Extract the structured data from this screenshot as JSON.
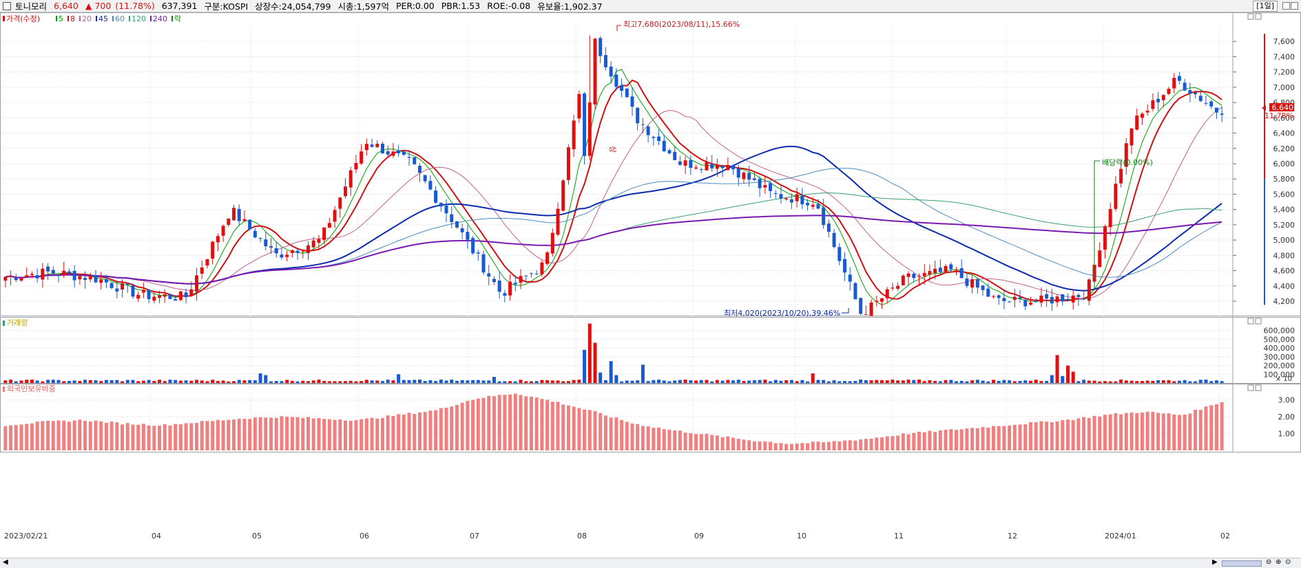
{
  "header": {
    "name": "토니모리",
    "price": "6,640",
    "change_arrow": "▲",
    "change": "700",
    "change_pct": "(11.78%)",
    "volume": "637,391",
    "market": "구분:KOSPI",
    "shares": "상장수:24,054,799",
    "cap": "시총:1,597억",
    "per": "PER:0.00",
    "pbr": "PBR:1.53",
    "roe": "ROE:-0.08",
    "float": "유보율:1,902.37",
    "period": "[1일]"
  },
  "legend": [
    {
      "label": "가격(수정)",
      "color": "#d01010"
    },
    {
      "label": "5",
      "color": "#00a000"
    },
    {
      "label": "8",
      "color": "#d01010"
    },
    {
      "label": "20",
      "color": "#c06090"
    },
    {
      "label": "45",
      "color": "#0a2ab0"
    },
    {
      "label": "60",
      "color": "#4a8ac0"
    },
    {
      "label": "120",
      "color": "#3aa070"
    },
    {
      "label": "240",
      "color": "#7a1ab0"
    },
    {
      "label": "락",
      "color": "#108010"
    }
  ],
  "annotations": {
    "high": "최고7,680(2023/08/11),15.66%",
    "low": "최저4,020(2023/10/20),39.46%",
    "limit_up": "상",
    "dividend": "배당락(0.00%)"
  },
  "current_price_label": "6,640",
  "current_pct_label": "11.78%",
  "volume_title": "거래량",
  "volume_scale_note": "× 10",
  "foreign_title": "외국인보유비중",
  "x_labels": [
    "2023/02/21",
    "04",
    "05",
    "06",
    "07",
    "08",
    "09",
    "10",
    "11",
    "12",
    "2024/01",
    "02"
  ],
  "price_ticks": [
    "4,200",
    "4,400",
    "4,600",
    "4,800",
    "5,000",
    "5,200",
    "5,400",
    "5,600",
    "5,800",
    "6,000",
    "6,200",
    "6,400",
    "6,600",
    "6,800",
    "7,000",
    "7,200",
    "7,400",
    "7,600"
  ],
  "volume_ticks": [
    "100,000",
    "200,000",
    "300,000",
    "400,000",
    "500,000",
    "600,000"
  ],
  "foreign_ticks": [
    "1.00",
    "2.00",
    "3.00"
  ],
  "colors": {
    "up": "#e01010",
    "down": "#1a5ad0",
    "foreign_bar": "#f08080",
    "grid": "#e4e4e4",
    "axis_text": "#333333"
  },
  "chart_data": [
    {
      "type": "candlestick",
      "title": "",
      "ylim": [
        4020,
        7800
      ],
      "x_range": [
        "2023/02/21",
        "2024/02"
      ],
      "price_points": [
        {
          "date": "2023/02/21",
          "close": 4520
        },
        {
          "date": "2023/03",
          "close": 4580
        },
        {
          "date": "2023/04",
          "close": 4500
        },
        {
          "date": "2023/04-end",
          "close": 4280
        },
        {
          "date": "2023/05",
          "close": 4250
        },
        {
          "date": "2023/05-mid",
          "close": 5400
        },
        {
          "date": "2023/06",
          "close": 4800
        },
        {
          "date": "2023/06-mid",
          "close": 5000
        },
        {
          "date": "2023/06-end",
          "close": 6300
        },
        {
          "date": "2023/07",
          "close": 6000
        },
        {
          "date": "2023/07-mid",
          "close": 5200
        },
        {
          "date": "2023/07-end",
          "close": 4300
        },
        {
          "date": "2023/08",
          "close": 4700
        },
        {
          "date": "2023/08/11",
          "close": 7680
        },
        {
          "date": "2023/08-mid",
          "close": 6600
        },
        {
          "date": "2023/08-end",
          "close": 6000
        },
        {
          "date": "2023/09",
          "close": 6000
        },
        {
          "date": "2023/09-end",
          "close": 5600
        },
        {
          "date": "2023/10",
          "close": 5500
        },
        {
          "date": "2023/10/20",
          "close": 4020
        },
        {
          "date": "2023/11",
          "close": 4500
        },
        {
          "date": "2023/11-mid",
          "close": 4600
        },
        {
          "date": "2023/12",
          "close": 4200
        },
        {
          "date": "2023/12-end",
          "close": 4200
        },
        {
          "date": "2024/01",
          "close": 4300
        },
        {
          "date": "2024/01-mid",
          "close": 6500
        },
        {
          "date": "2024/01-end",
          "close": 7100
        },
        {
          "date": "2024/02",
          "close": 6640
        }
      ],
      "moving_averages": [
        "5",
        "8",
        "20",
        "45",
        "60",
        "120",
        "240"
      ]
    },
    {
      "type": "bar",
      "title": "거래량",
      "ylim": [
        0,
        700000
      ],
      "peaks": [
        {
          "date": "2023/08/11",
          "value": 680000
        },
        {
          "date": "2024/01-mid",
          "value": 320000
        }
      ]
    },
    {
      "type": "bar",
      "title": "외국인보유비중",
      "ylim": [
        0,
        3.5
      ],
      "values": [
        1.5,
        1.7,
        1.8,
        1.6,
        1.5,
        1.7,
        1.9,
        2.0,
        1.9,
        1.8,
        2.1,
        2.4,
        3.1,
        3.4,
        2.9,
        2.3,
        1.6,
        1.2,
        0.9,
        0.6,
        0.4,
        0.5,
        0.7,
        1.0,
        1.2,
        1.4,
        1.6,
        1.8,
        2.1,
        2.3,
        2.1,
        2.9
      ]
    }
  ]
}
